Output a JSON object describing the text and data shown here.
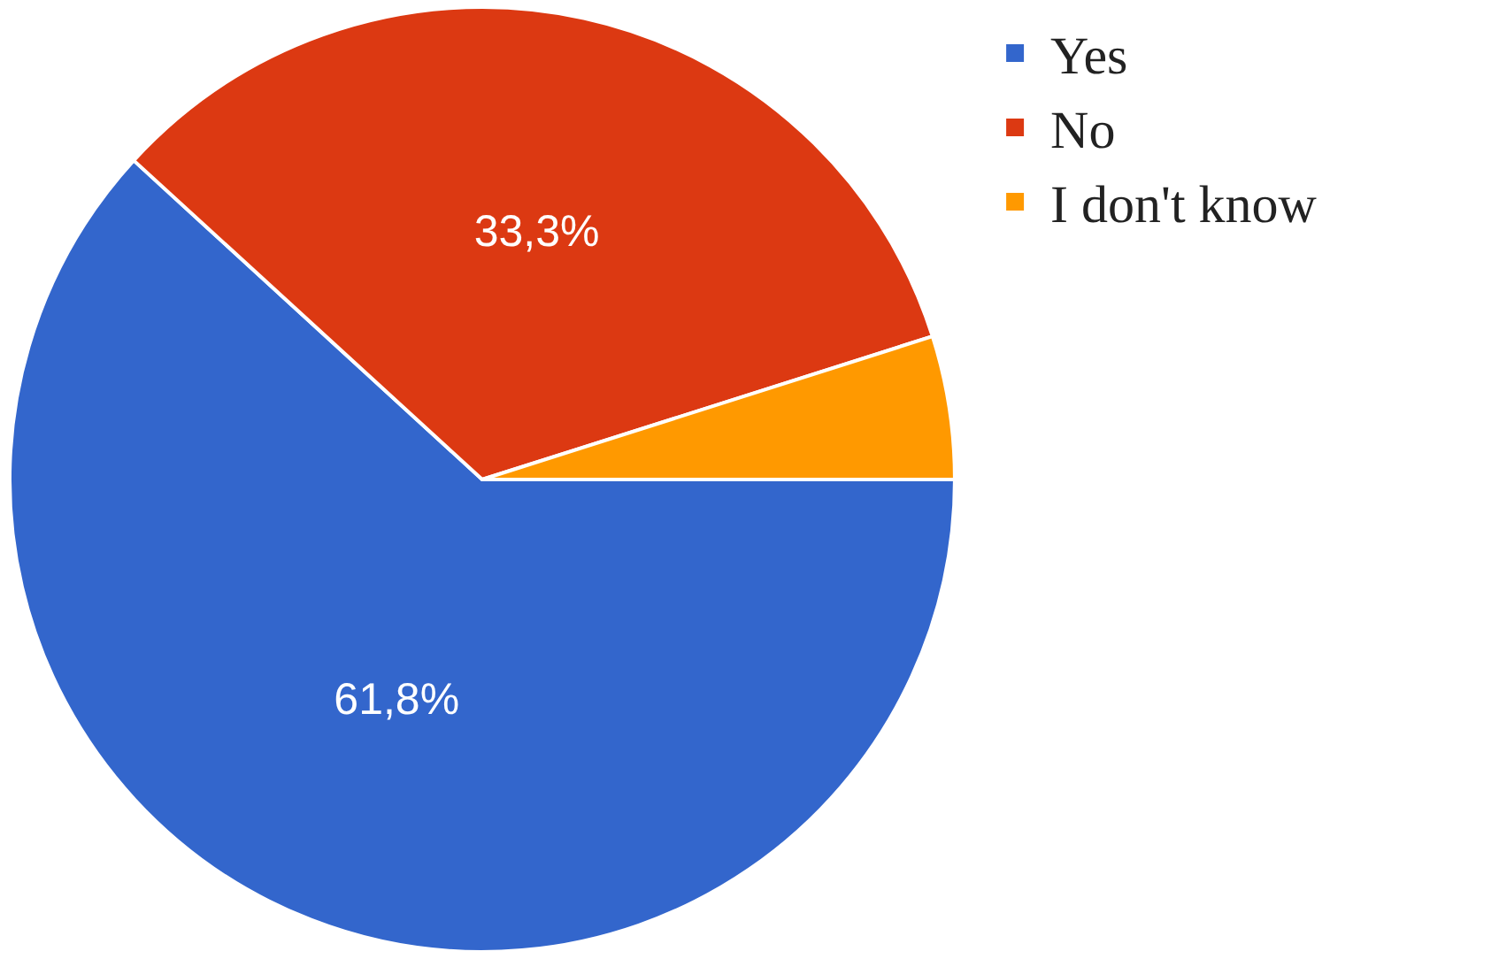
{
  "chart_data": {
    "type": "pie",
    "categories": [
      "Yes",
      "No",
      "I don't know"
    ],
    "values": [
      61.8,
      33.3,
      4.9
    ],
    "colors": [
      "#3366cc",
      "#dc3912",
      "#ff9900"
    ],
    "value_labels": [
      "61,8%",
      "33,3%",
      null
    ],
    "legend": "top right"
  }
}
